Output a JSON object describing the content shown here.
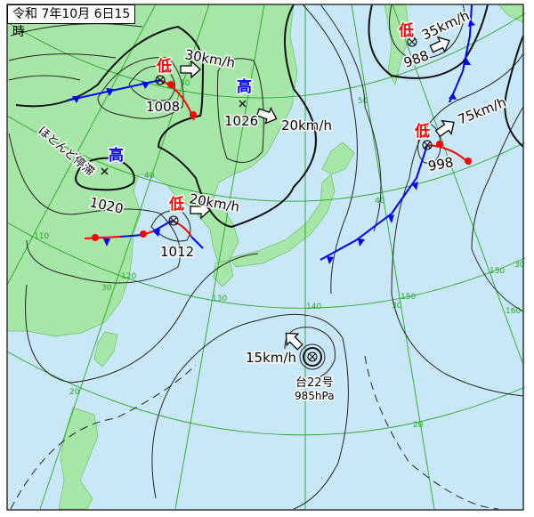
{
  "title": "令和 7年10月 6日15時",
  "colors": {
    "sea": "#c8e8f8",
    "land": "#a6e6a6",
    "low": "#ff0000",
    "high": "#0000ff",
    "typhoon": "#ff00ff",
    "grid": "#2aa52a"
  },
  "systems": {
    "low_1008": {
      "type": "低",
      "pressure": "1008",
      "speed": "30km/h"
    },
    "high_1026": {
      "type": "高",
      "pressure": "1026",
      "speed": "20km/h"
    },
    "high_1020": {
      "type": "高",
      "pressure": "1020",
      "motion": "ほとんど停滞"
    },
    "low_1012": {
      "type": "低",
      "pressure": "1012",
      "speed": "20km/h"
    },
    "low_988": {
      "type": "低",
      "pressure": "988",
      "speed": "35km/h"
    },
    "low_998": {
      "type": "低",
      "pressure": "998",
      "speed": "75km/h"
    },
    "typhoon": {
      "name": "台22号",
      "pressure": "985hPa",
      "speed": "15km/h"
    }
  },
  "grid_labels": {
    "lat": {
      "l50a": "50",
      "l50b": "50",
      "l40a": "40",
      "l40b": "40",
      "l30a": "30",
      "l30b": "30",
      "l30c": "30",
      "l20a": "20",
      "l20b": "20"
    },
    "lon": {
      "l110": "110",
      "l120": "120",
      "l130": "130",
      "l140": "140",
      "l150a": "150",
      "l150b": "150",
      "l160": "160"
    }
  }
}
